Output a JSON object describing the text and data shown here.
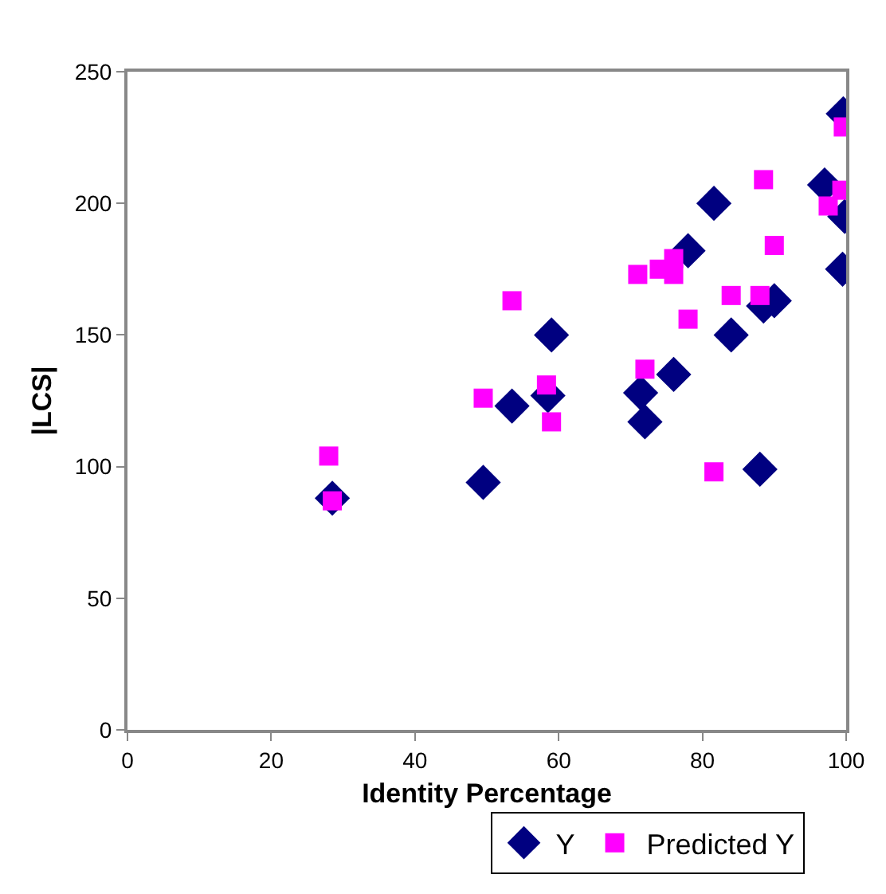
{
  "chart_data": {
    "type": "scatter",
    "xlabel": "Identity Percentage",
    "ylabel": "|LCS|",
    "xlim": [
      0,
      100
    ],
    "xticks": [
      0,
      20,
      40,
      60,
      80,
      100
    ],
    "ylim": [
      0,
      250
    ],
    "yticks": [
      0,
      50,
      100,
      150,
      200,
      250
    ],
    "grid": false,
    "legend": "bottom right",
    "series": [
      {
        "name": "Y",
        "color": "#000080",
        "marker": "diamond",
        "x": [
          28.5,
          49.5,
          53.5,
          58.5,
          59,
          71.4,
          72,
          76,
          78,
          81.6,
          84,
          88,
          88.5,
          90,
          97,
          99.6,
          99.8,
          99.5
        ],
        "values": [
          88,
          94,
          123,
          127,
          150,
          128,
          117,
          135,
          182,
          200,
          150,
          99,
          161,
          163,
          207,
          234,
          195,
          175
        ]
      },
      {
        "name": "Predicted Y",
        "color": "#ff00ff",
        "marker": "square",
        "x": [
          28,
          28.5,
          49.5,
          53.5,
          58.3,
          59,
          71,
          72,
          74,
          76,
          76,
          78,
          81.6,
          84,
          88,
          88.5,
          90,
          97.5,
          99.4,
          99.6
        ],
        "values": [
          104,
          87,
          126,
          163,
          131,
          117,
          173,
          137,
          175,
          173,
          179,
          156,
          98,
          165,
          165,
          209,
          184,
          199,
          205,
          229
        ]
      }
    ]
  }
}
